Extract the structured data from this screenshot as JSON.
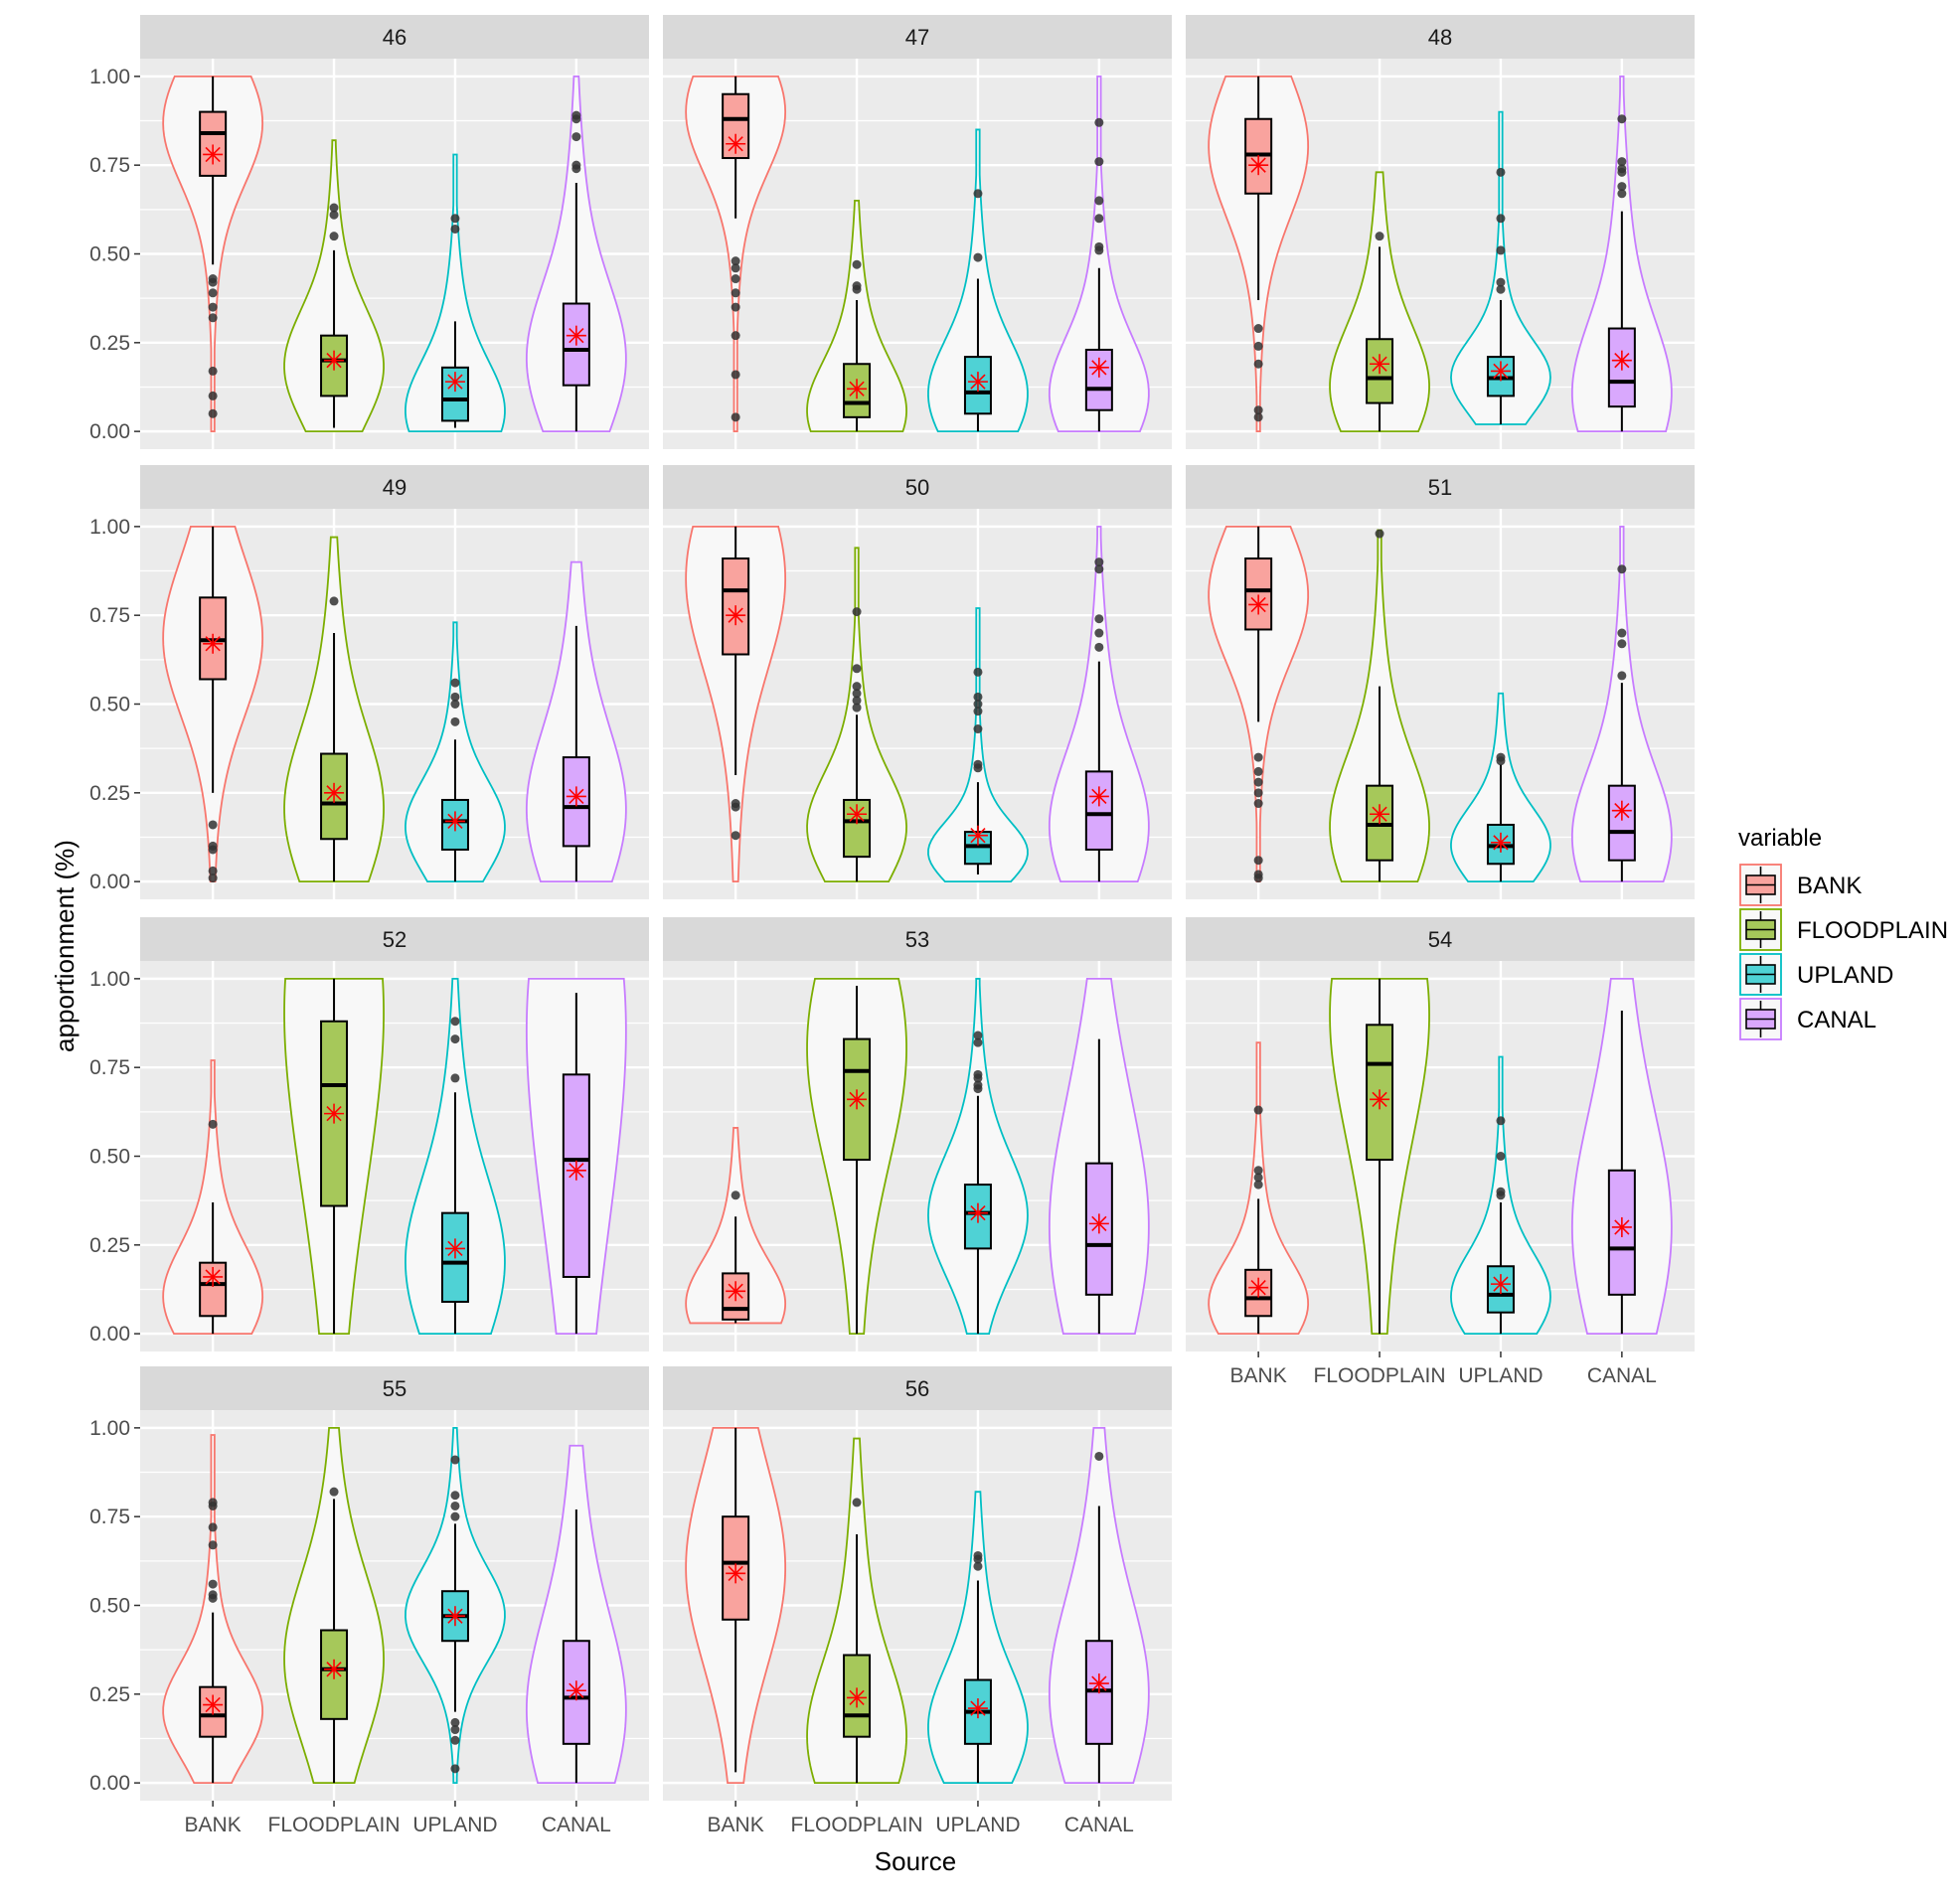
{
  "chart_data": {
    "type": "violin+box",
    "xlabel": "Source",
    "ylabel": "apportionment (%)",
    "ylim": [
      0,
      1
    ],
    "yticks": [
      "0.00",
      "0.25",
      "0.50",
      "0.75",
      "1.00"
    ],
    "categories": [
      "BANK",
      "FLOODPLAIN",
      "UPLAND",
      "CANAL"
    ],
    "legend": {
      "title": "variable",
      "position": "right",
      "entries": [
        "BANK",
        "FLOODPLAIN",
        "UPLAND",
        "CANAL"
      ]
    },
    "colors": {
      "BANK": "#F8766D",
      "FLOODPLAIN": "#7CAE00",
      "UPLAND": "#00BFC4",
      "CANAL": "#C77CFF"
    },
    "fills": {
      "BANK": "#F9A39E",
      "FLOODPLAIN": "#A6C85A",
      "UPLAND": "#4FD2D5",
      "CANAL": "#D9A8FD"
    },
    "mean_marker": {
      "shape": "asterisk",
      "color": "#FF0000"
    },
    "grid": true,
    "facets": [
      {
        "label": "46",
        "groups": [
          {
            "range": [
              0,
              1
            ],
            "peak": 0.87,
            "q1": 0.72,
            "median": 0.84,
            "q3": 0.9,
            "mean": 0.78,
            "whisker": [
              0.47,
              1.0
            ],
            "outliers": [
              0.43,
              0.42,
              0.39,
              0.35,
              0.32,
              0.17,
              0.1,
              0.05
            ]
          },
          {
            "range": [
              0,
              0.82
            ],
            "peak": 0.18,
            "q1": 0.1,
            "median": 0.2,
            "q3": 0.27,
            "mean": 0.2,
            "whisker": [
              0.01,
              0.51
            ],
            "outliers": [
              0.55,
              0.61,
              0.63
            ]
          },
          {
            "range": [
              0,
              0.78
            ],
            "peak": 0.05,
            "q1": 0.03,
            "median": 0.09,
            "q3": 0.18,
            "mean": 0.14,
            "whisker": [
              0.01,
              0.31
            ],
            "outliers": [
              0.57,
              0.6
            ]
          },
          {
            "range": [
              0,
              1
            ],
            "peak": 0.2,
            "q1": 0.13,
            "median": 0.23,
            "q3": 0.36,
            "mean": 0.27,
            "whisker": [
              0,
              0.7
            ],
            "outliers": [
              0.74,
              0.75,
              0.83,
              0.88,
              0.89
            ]
          }
        ]
      },
      {
        "label": "47",
        "groups": [
          {
            "range": [
              0,
              1
            ],
            "peak": 0.9,
            "q1": 0.77,
            "median": 0.88,
            "q3": 0.95,
            "mean": 0.81,
            "whisker": [
              0.6,
              1.0
            ],
            "outliers": [
              0.48,
              0.46,
              0.43,
              0.39,
              0.35,
              0.27,
              0.16,
              0.04
            ]
          },
          {
            "range": [
              0,
              0.65
            ],
            "peak": 0.05,
            "q1": 0.04,
            "median": 0.08,
            "q3": 0.19,
            "mean": 0.12,
            "whisker": [
              0,
              0.37
            ],
            "outliers": [
              0.4,
              0.41,
              0.47
            ]
          },
          {
            "range": [
              0,
              0.85
            ],
            "peak": 0.1,
            "q1": 0.05,
            "median": 0.11,
            "q3": 0.21,
            "mean": 0.14,
            "whisker": [
              0,
              0.43
            ],
            "outliers": [
              0.49,
              0.67
            ]
          },
          {
            "range": [
              0,
              1
            ],
            "peak": 0.1,
            "q1": 0.06,
            "median": 0.12,
            "q3": 0.23,
            "mean": 0.18,
            "whisker": [
              0,
              0.46
            ],
            "outliers": [
              0.51,
              0.52,
              0.6,
              0.65,
              0.76,
              0.87
            ]
          }
        ]
      },
      {
        "label": "48",
        "groups": [
          {
            "range": [
              0,
              1
            ],
            "peak": 0.8,
            "q1": 0.67,
            "median": 0.78,
            "q3": 0.88,
            "mean": 0.75,
            "whisker": [
              0.37,
              1.0
            ],
            "outliers": [
              0.29,
              0.24,
              0.19,
              0.06,
              0.04
            ]
          },
          {
            "range": [
              0,
              0.73
            ],
            "peak": 0.12,
            "q1": 0.08,
            "median": 0.15,
            "q3": 0.26,
            "mean": 0.19,
            "whisker": [
              0,
              0.52
            ],
            "outliers": [
              0.55
            ]
          },
          {
            "range": [
              0.02,
              0.9
            ],
            "peak": 0.15,
            "q1": 0.1,
            "median": 0.15,
            "q3": 0.21,
            "mean": 0.17,
            "whisker": [
              0.02,
              0.37
            ],
            "outliers": [
              0.4,
              0.42,
              0.51,
              0.6,
              0.73
            ]
          },
          {
            "range": [
              0,
              1
            ],
            "peak": 0.1,
            "q1": 0.07,
            "median": 0.14,
            "q3": 0.29,
            "mean": 0.2,
            "whisker": [
              0,
              0.62
            ],
            "outliers": [
              0.67,
              0.69,
              0.73,
              0.74,
              0.76,
              0.88
            ]
          }
        ]
      },
      {
        "label": "49",
        "groups": [
          {
            "range": [
              0,
              1
            ],
            "peak": 0.68,
            "q1": 0.57,
            "median": 0.68,
            "q3": 0.8,
            "mean": 0.67,
            "whisker": [
              0.25,
              1.0
            ],
            "outliers": [
              0.16,
              0.1,
              0.09,
              0.03,
              0.01
            ]
          },
          {
            "range": [
              0,
              0.97
            ],
            "peak": 0.2,
            "q1": 0.12,
            "median": 0.22,
            "q3": 0.36,
            "mean": 0.25,
            "whisker": [
              0,
              0.7
            ],
            "outliers": [
              0.79
            ]
          },
          {
            "range": [
              0,
              0.73
            ],
            "peak": 0.15,
            "q1": 0.09,
            "median": 0.17,
            "q3": 0.23,
            "mean": 0.17,
            "whisker": [
              0,
              0.4
            ],
            "outliers": [
              0.45,
              0.5,
              0.52,
              0.56
            ]
          },
          {
            "range": [
              0,
              0.9
            ],
            "peak": 0.2,
            "q1": 0.1,
            "median": 0.21,
            "q3": 0.35,
            "mean": 0.24,
            "whisker": [
              0,
              0.72
            ],
            "outliers": []
          }
        ]
      },
      {
        "label": "50",
        "groups": [
          {
            "range": [
              0,
              1
            ],
            "peak": 0.85,
            "q1": 0.64,
            "median": 0.82,
            "q3": 0.91,
            "mean": 0.75,
            "whisker": [
              0.3,
              1.0
            ],
            "outliers": [
              0.22,
              0.21,
              0.13
            ]
          },
          {
            "range": [
              0,
              0.94
            ],
            "peak": 0.15,
            "q1": 0.07,
            "median": 0.17,
            "q3": 0.23,
            "mean": 0.19,
            "whisker": [
              0,
              0.47
            ],
            "outliers": [
              0.49,
              0.51,
              0.53,
              0.55,
              0.6,
              0.76
            ]
          },
          {
            "range": [
              0,
              0.77
            ],
            "peak": 0.08,
            "q1": 0.05,
            "median": 0.1,
            "q3": 0.14,
            "mean": 0.13,
            "whisker": [
              0.02,
              0.28
            ],
            "outliers": [
              0.32,
              0.33,
              0.43,
              0.48,
              0.5,
              0.52,
              0.59
            ]
          },
          {
            "range": [
              0,
              1
            ],
            "peak": 0.15,
            "q1": 0.09,
            "median": 0.19,
            "q3": 0.31,
            "mean": 0.24,
            "whisker": [
              0,
              0.62
            ],
            "outliers": [
              0.66,
              0.7,
              0.74,
              0.88,
              0.9
            ]
          }
        ]
      },
      {
        "label": "51",
        "groups": [
          {
            "range": [
              0,
              1
            ],
            "peak": 0.8,
            "q1": 0.71,
            "median": 0.82,
            "q3": 0.91,
            "mean": 0.78,
            "whisker": [
              0.45,
              1.0
            ],
            "outliers": [
              0.35,
              0.31,
              0.28,
              0.25,
              0.22,
              0.06,
              0.02,
              0.01
            ]
          },
          {
            "range": [
              0,
              0.99
            ],
            "peak": 0.15,
            "q1": 0.06,
            "median": 0.16,
            "q3": 0.27,
            "mean": 0.19,
            "whisker": [
              0,
              0.55
            ],
            "outliers": [
              0.98
            ]
          },
          {
            "range": [
              0,
              0.53
            ],
            "peak": 0.1,
            "q1": 0.05,
            "median": 0.1,
            "q3": 0.16,
            "mean": 0.11,
            "whisker": [
              0,
              0.33
            ],
            "outliers": [
              0.34,
              0.35
            ]
          },
          {
            "range": [
              0,
              1
            ],
            "peak": 0.12,
            "q1": 0.06,
            "median": 0.14,
            "q3": 0.27,
            "mean": 0.2,
            "whisker": [
              0,
              0.56
            ],
            "outliers": [
              0.58,
              0.67,
              0.7,
              0.88
            ]
          }
        ]
      },
      {
        "label": "52",
        "groups": [
          {
            "range": [
              0,
              0.77
            ],
            "peak": 0.1,
            "q1": 0.05,
            "median": 0.14,
            "q3": 0.2,
            "mean": 0.16,
            "whisker": [
              0,
              0.37
            ],
            "outliers": [
              0.59
            ]
          },
          {
            "range": [
              0,
              1
            ],
            "peak": 0.9,
            "q1": 0.36,
            "median": 0.7,
            "q3": 0.88,
            "mean": 0.62,
            "whisker": [
              0,
              1.0
            ],
            "outliers": []
          },
          {
            "range": [
              0,
              1
            ],
            "peak": 0.2,
            "q1": 0.09,
            "median": 0.2,
            "q3": 0.34,
            "mean": 0.24,
            "whisker": [
              0,
              0.68
            ],
            "outliers": [
              0.72,
              0.83,
              0.88
            ]
          },
          {
            "range": [
              0,
              1
            ],
            "peak": 0.85,
            "q1": 0.16,
            "median": 0.49,
            "q3": 0.73,
            "mean": 0.46,
            "whisker": [
              0,
              0.96
            ],
            "outliers": []
          }
        ]
      },
      {
        "label": "53",
        "groups": [
          {
            "range": [
              0.03,
              0.58
            ],
            "peak": 0.08,
            "q1": 0.04,
            "median": 0.07,
            "q3": 0.17,
            "mean": 0.12,
            "whisker": [
              0.03,
              0.33
            ],
            "outliers": [
              0.39
            ]
          },
          {
            "range": [
              0,
              1
            ],
            "peak": 0.8,
            "q1": 0.49,
            "median": 0.74,
            "q3": 0.83,
            "mean": 0.66,
            "whisker": [
              0,
              0.98
            ],
            "outliers": []
          },
          {
            "range": [
              0,
              1
            ],
            "peak": 0.33,
            "q1": 0.24,
            "median": 0.34,
            "q3": 0.42,
            "mean": 0.34,
            "whisker": [
              0,
              0.67
            ],
            "outliers": [
              0.69,
              0.7,
              0.72,
              0.73,
              0.82,
              0.84
            ]
          },
          {
            "range": [
              0,
              1
            ],
            "peak": 0.3,
            "q1": 0.11,
            "median": 0.25,
            "q3": 0.48,
            "mean": 0.31,
            "whisker": [
              0,
              0.83
            ],
            "outliers": []
          }
        ]
      },
      {
        "label": "54",
        "groups": [
          {
            "range": [
              0,
              0.82
            ],
            "peak": 0.08,
            "q1": 0.05,
            "median": 0.1,
            "q3": 0.18,
            "mean": 0.13,
            "whisker": [
              0,
              0.38
            ],
            "outliers": [
              0.42,
              0.44,
              0.46,
              0.63
            ]
          },
          {
            "range": [
              0,
              1
            ],
            "peak": 0.9,
            "q1": 0.49,
            "median": 0.76,
            "q3": 0.87,
            "mean": 0.66,
            "whisker": [
              0,
              1.0
            ],
            "outliers": []
          },
          {
            "range": [
              0,
              0.78
            ],
            "peak": 0.1,
            "q1": 0.06,
            "median": 0.11,
            "q3": 0.19,
            "mean": 0.14,
            "whisker": [
              0,
              0.37
            ],
            "outliers": [
              0.39,
              0.4,
              0.5,
              0.6
            ]
          },
          {
            "range": [
              0,
              1
            ],
            "peak": 0.3,
            "q1": 0.11,
            "median": 0.24,
            "q3": 0.46,
            "mean": 0.3,
            "whisker": [
              0,
              0.91
            ],
            "outliers": []
          }
        ]
      },
      {
        "label": "55",
        "groups": [
          {
            "range": [
              0,
              0.98
            ],
            "peak": 0.2,
            "q1": 0.13,
            "median": 0.19,
            "q3": 0.27,
            "mean": 0.22,
            "whisker": [
              0,
              0.48
            ],
            "outliers": [
              0.52,
              0.53,
              0.56,
              0.67,
              0.72,
              0.78,
              0.79
            ]
          },
          {
            "range": [
              0,
              1
            ],
            "peak": 0.35,
            "q1": 0.18,
            "median": 0.32,
            "q3": 0.43,
            "mean": 0.32,
            "whisker": [
              0,
              0.8
            ],
            "outliers": [
              0.82
            ]
          },
          {
            "range": [
              0,
              1
            ],
            "peak": 0.47,
            "q1": 0.4,
            "median": 0.47,
            "q3": 0.54,
            "mean": 0.47,
            "whisker": [
              0.2,
              0.73
            ],
            "outliers": [
              0.75,
              0.78,
              0.81,
              0.91,
              0.17,
              0.15,
              0.12,
              0.04
            ]
          },
          {
            "range": [
              0,
              0.95
            ],
            "peak": 0.2,
            "q1": 0.11,
            "median": 0.24,
            "q3": 0.4,
            "mean": 0.26,
            "whisker": [
              0,
              0.77
            ],
            "outliers": []
          }
        ]
      },
      {
        "label": "56",
        "groups": [
          {
            "range": [
              0,
              1
            ],
            "peak": 0.6,
            "q1": 0.46,
            "median": 0.62,
            "q3": 0.75,
            "mean": 0.59,
            "whisker": [
              0.03,
              1.0
            ],
            "outliers": []
          },
          {
            "range": [
              0,
              0.97
            ],
            "peak": 0.12,
            "q1": 0.13,
            "median": 0.19,
            "q3": 0.36,
            "mean": 0.24,
            "whisker": [
              0,
              0.7
            ],
            "outliers": [
              0.79
            ]
          },
          {
            "range": [
              0,
              0.82
            ],
            "peak": 0.15,
            "q1": 0.11,
            "median": 0.2,
            "q3": 0.29,
            "mean": 0.21,
            "whisker": [
              0,
              0.57
            ],
            "outliers": [
              0.61,
              0.63,
              0.64
            ]
          },
          {
            "range": [
              0,
              1
            ],
            "peak": 0.25,
            "q1": 0.11,
            "median": 0.26,
            "q3": 0.4,
            "mean": 0.28,
            "whisker": [
              0,
              0.78
            ],
            "outliers": [
              0.92
            ]
          }
        ]
      }
    ]
  }
}
